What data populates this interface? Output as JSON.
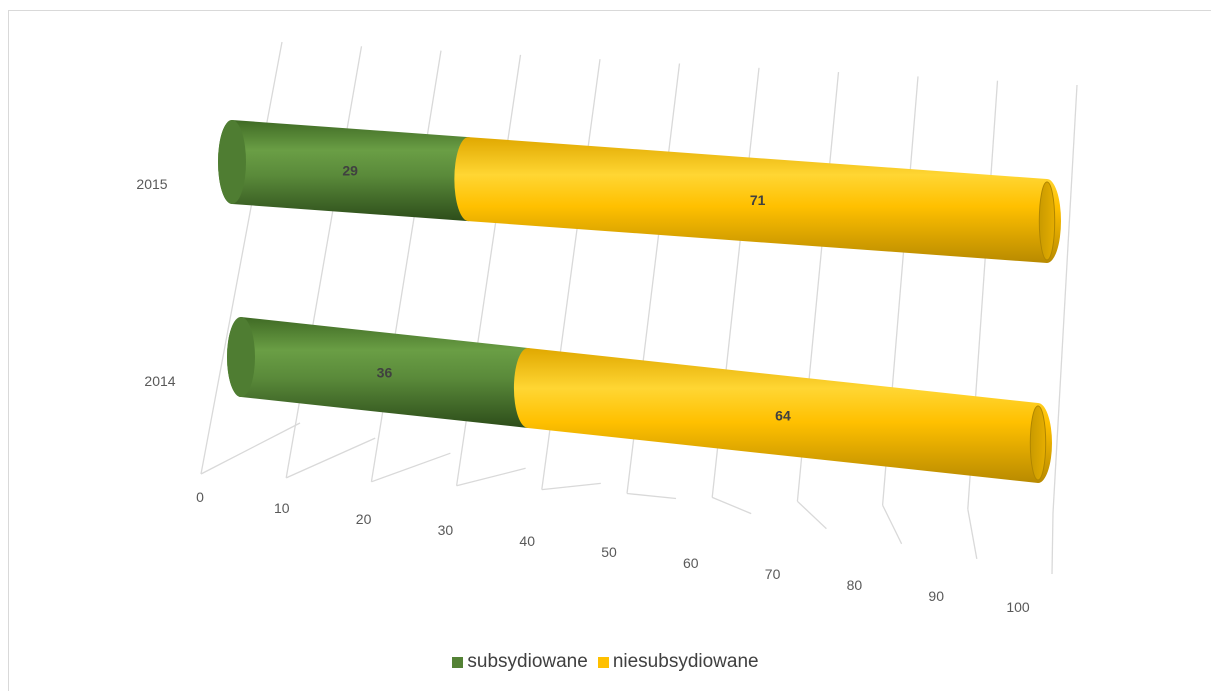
{
  "chart_data": {
    "type": "bar",
    "orientation": "horizontal",
    "style": "3d-cylinder",
    "stacked": true,
    "categories": [
      "2015",
      "2014"
    ],
    "series": [
      {
        "name": "subsydiowane",
        "values": [
          29,
          36
        ],
        "color": "#548235"
      },
      {
        "name": "niesubsydiowane",
        "values": [
          71,
          64
        ],
        "color": "#ffc000"
      }
    ],
    "data_labels": [
      [
        "29",
        "36"
      ],
      [
        "71",
        "64"
      ]
    ],
    "x_ticks": [
      "0",
      "10",
      "20",
      "30",
      "40",
      "50",
      "60",
      "70",
      "80",
      "90",
      "100"
    ],
    "xlim": [
      0,
      100
    ],
    "grid": true,
    "legend_position": "bottom",
    "title": "",
    "xlabel": "",
    "ylabel": ""
  }
}
